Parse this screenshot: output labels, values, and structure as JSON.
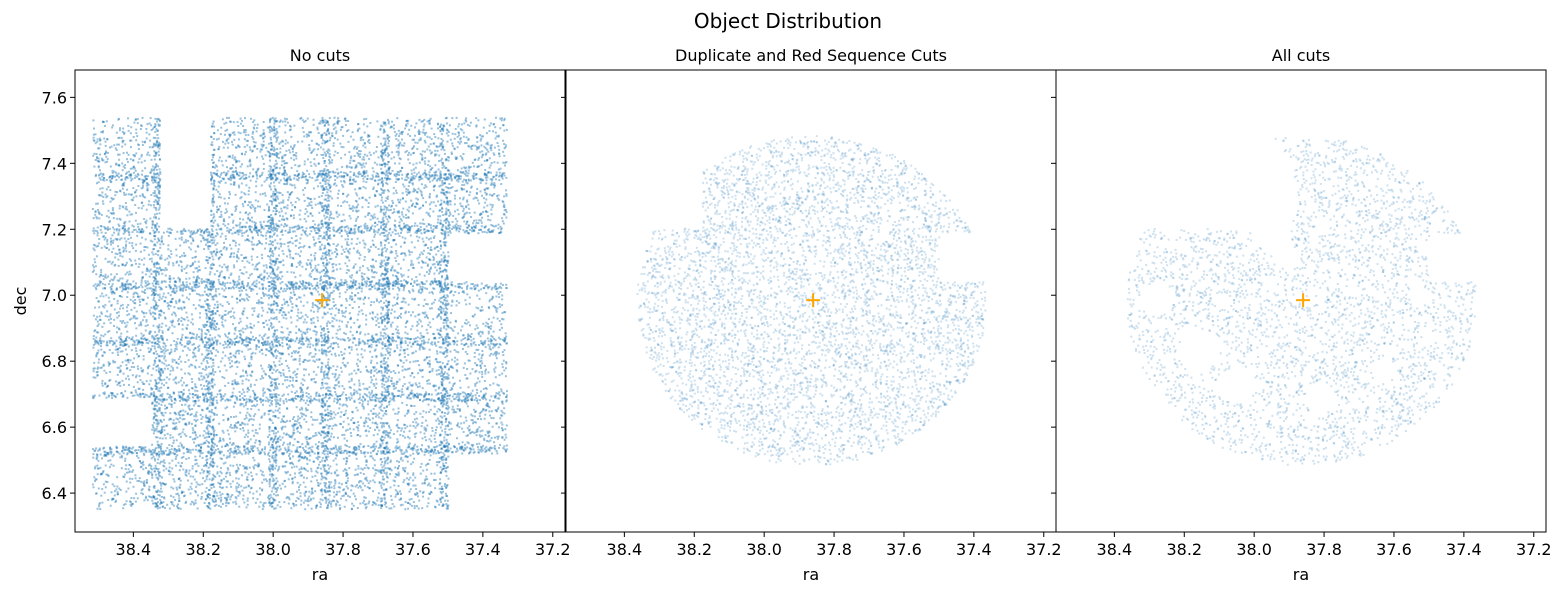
{
  "chart_data": {
    "type": "scatter",
    "title": "Object Distribution",
    "color": "#1f77b4",
    "marker_color": "#ffa500",
    "center_marker": {
      "ra": 37.86,
      "dec": 6.985,
      "symbol": "plus"
    },
    "xlim": [
      38.567,
      37.165
    ],
    "ylim": [
      6.282,
      7.683
    ],
    "x_inverted": true,
    "grid": false,
    "xticks": [
      "38.4",
      "38.2",
      "38.0",
      "37.8",
      "37.6",
      "37.4",
      "37.2"
    ],
    "yticks": [
      "6.4",
      "6.6",
      "6.8",
      "7.0",
      "7.2",
      "7.4",
      "7.6"
    ],
    "xlabel": "ra",
    "ylabel": "dec",
    "footprint_tiles": [
      {
        "ra": [
          38.516,
          38.323
        ],
        "dec": [
          6.688,
          7.538
        ]
      },
      {
        "ra": [
          38.516,
          38.347
        ],
        "dec": [
          6.351,
          6.541
        ]
      },
      {
        "ra": [
          38.347,
          37.498
        ],
        "dec": [
          6.351,
          7.202
        ]
      },
      {
        "ra": [
          38.178,
          37.331
        ],
        "dec": [
          7.187,
          7.538
        ]
      },
      {
        "ra": [
          37.498,
          37.331
        ],
        "dec": [
          6.52,
          7.04
        ]
      }
    ],
    "tile_overlap_ra": [
      38.33,
      38.18,
      38.0,
      37.85,
      37.68,
      37.51
    ],
    "tile_overlap_dec": [
      7.36,
      7.2,
      7.03,
      6.86,
      6.69,
      6.53
    ],
    "cut_circle": {
      "ra": 37.864,
      "dec": 6.983,
      "radius": 0.5
    },
    "masked_holes": [
      {
        "ra": 38.155,
        "dec": 6.837,
        "radius": 0.06
      },
      {
        "ra": 38.05,
        "dec": 6.726,
        "radius": 0.055
      },
      {
        "ra": 38.28,
        "dec": 6.988,
        "radius": 0.05
      },
      {
        "ra": 37.81,
        "dec": 6.686,
        "radius": 0.045
      },
      {
        "ra": 37.63,
        "dec": 6.77,
        "radius": 0.035
      },
      {
        "ra": 37.525,
        "dec": 6.997,
        "radius": 0.03
      }
    ],
    "masked_region": [
      [
        38.19,
        7.21
      ],
      [
        38.012,
        7.19
      ],
      [
        37.898,
        7.059
      ],
      [
        37.869,
        7.109
      ],
      [
        37.907,
        7.2
      ],
      [
        37.869,
        7.27
      ],
      [
        37.888,
        7.381
      ],
      [
        37.926,
        7.462
      ],
      [
        37.974,
        7.5
      ],
      [
        38.19,
        7.5
      ]
    ],
    "panels": [
      {
        "title": "No cuts",
        "cuts": "none"
      },
      {
        "title": "Duplicate and Red Sequence Cuts",
        "cuts": "circle"
      },
      {
        "title": "All cuts",
        "cuts": "circle+masks"
      }
    ]
  }
}
